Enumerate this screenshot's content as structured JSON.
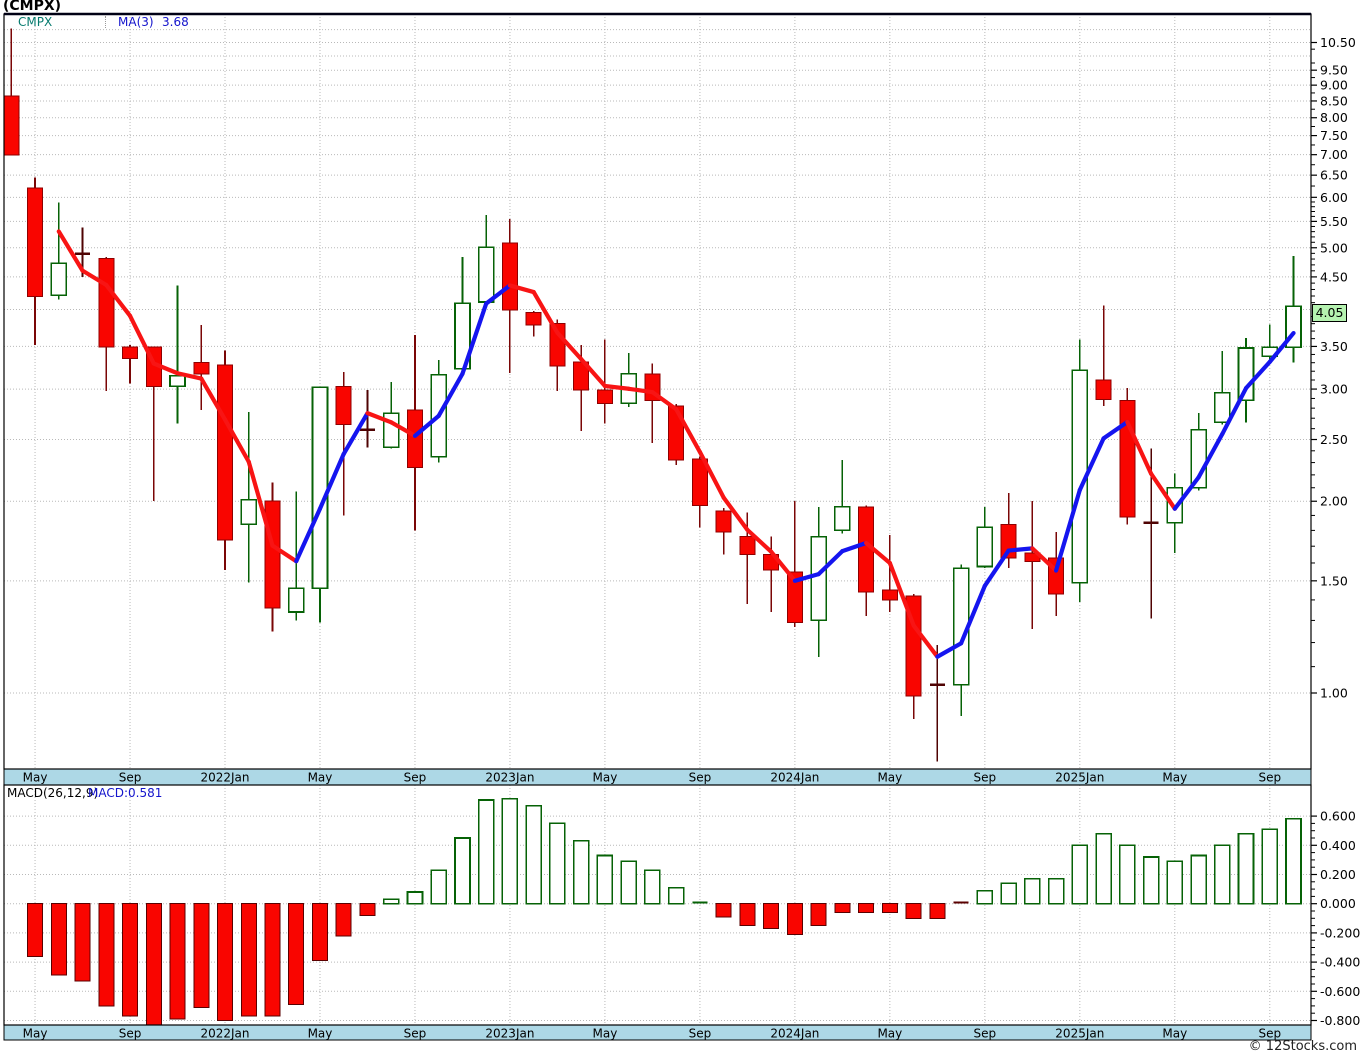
{
  "title": "(CMPX)",
  "legend": {
    "symbol": "CMPX",
    "ma_label": "MA(3)",
    "ma_value": "3.68"
  },
  "macd_legend": {
    "label": "MACD(26,12,9)",
    "value": "MACD:0.581"
  },
  "price_badge": "4.05",
  "watermark": "© 12Stocks.com",
  "colors": {
    "up_outline": "#066206",
    "down_fill": "#f90500",
    "down_outline": "#8f0000",
    "down_wick": "#7a0606",
    "doji": "#4f0303",
    "ma_up": "#1515ef",
    "ma_down": "#f81414",
    "grid": "#b9b9b9",
    "axis_strip": "#add8e6",
    "badge_bg": "#b5f2b0",
    "legend_symbol": "#067a6e",
    "legend_blue": "#1414cc"
  },
  "chart_data": {
    "type": "candlestick",
    "symbol": "CMPX",
    "interval": "monthly",
    "ma_period": 3,
    "ma_current": 3.68,
    "macd_params": [
      26,
      12,
      9
    ],
    "macd_current": 0.581,
    "price_scale": "log",
    "price_axis": {
      "labeled_ticks": [
        "10.50",
        "9.50",
        "9.00",
        "8.50",
        "8.00",
        "7.50",
        "7.00",
        "6.50",
        "6.00",
        "5.50",
        "5.00",
        "4.50",
        "3.50",
        "3.00",
        "2.50",
        "2.00",
        "1.50",
        "1.00"
      ],
      "grid_min": 1.0,
      "grid_max": 11.0,
      "grid_step": 0.5,
      "current_price": 4.05
    },
    "macd_axis": {
      "labeled_ticks": [
        "0.600",
        "0.400",
        "0.200",
        "0.000",
        "-0.200",
        "-0.400",
        "-0.600",
        "-0.800"
      ],
      "grid_step": 0.2
    },
    "x_ticks": [
      {
        "i": 1,
        "label": "May"
      },
      {
        "i": 5,
        "label": "Sep"
      },
      {
        "i": 9,
        "label": "2022Jan"
      },
      {
        "i": 13,
        "label": "May"
      },
      {
        "i": 17,
        "label": "Sep"
      },
      {
        "i": 21,
        "label": "2023Jan"
      },
      {
        "i": 25,
        "label": "May"
      },
      {
        "i": 29,
        "label": "Sep"
      },
      {
        "i": 33,
        "label": "2024Jan"
      },
      {
        "i": 37,
        "label": "May"
      },
      {
        "i": 41,
        "label": "Sep"
      },
      {
        "i": 45,
        "label": "2025Jan"
      },
      {
        "i": 49,
        "label": "May"
      },
      {
        "i": 53,
        "label": "Sep"
      }
    ],
    "candles": [
      [
        "2021-04",
        8.65,
        11.05,
        6.99,
        6.99
      ],
      [
        "2021-05",
        6.21,
        6.45,
        3.52,
        4.19
      ],
      [
        "2021-06",
        4.21,
        5.89,
        4.15,
        4.73
      ],
      [
        "2021-07",
        4.89,
        5.38,
        4.5,
        4.89
      ],
      [
        "2021-08",
        4.81,
        4.84,
        2.98,
        3.49
      ],
      [
        "2021-09",
        3.49,
        3.52,
        3.06,
        3.35
      ],
      [
        "2021-10",
        3.49,
        3.49,
        2.0,
        3.03
      ],
      [
        "2021-11",
        3.03,
        4.36,
        2.65,
        3.15
      ],
      [
        "2021-12",
        3.3,
        3.78,
        2.78,
        3.17
      ],
      [
        "2022-01",
        3.27,
        3.45,
        1.56,
        1.74
      ],
      [
        "2022-02",
        1.84,
        2.76,
        1.49,
        2.01
      ],
      [
        "2022-03",
        2.0,
        2.14,
        1.25,
        1.36
      ],
      [
        "2022-04",
        1.34,
        2.07,
        1.3,
        1.46
      ],
      [
        "2022-05",
        1.46,
        3.02,
        1.29,
        3.02
      ],
      [
        "2022-06",
        3.03,
        3.19,
        1.9,
        2.64
      ],
      [
        "2022-07",
        2.59,
        2.99,
        2.43,
        2.59
      ],
      [
        "2022-08",
        2.43,
        3.08,
        2.42,
        2.75
      ],
      [
        "2022-09",
        2.78,
        3.65,
        1.8,
        2.26
      ],
      [
        "2022-10",
        2.35,
        3.33,
        2.3,
        3.16
      ],
      [
        "2022-11",
        3.23,
        4.84,
        3.2,
        4.09
      ],
      [
        "2022-12",
        4.11,
        5.63,
        4.09,
        5.01
      ],
      [
        "2023-01",
        5.09,
        5.55,
        3.18,
        3.99
      ],
      [
        "2023-02",
        3.96,
        3.98,
        3.63,
        3.78
      ],
      [
        "2023-03",
        3.8,
        3.86,
        2.98,
        3.26
      ],
      [
        "2023-04",
        3.31,
        3.52,
        2.58,
        2.99
      ],
      [
        "2023-05",
        2.99,
        3.59,
        2.65,
        2.85
      ],
      [
        "2023-06",
        2.85,
        3.42,
        2.81,
        3.17
      ],
      [
        "2023-07",
        3.17,
        3.29,
        2.47,
        2.88
      ],
      [
        "2023-08",
        2.82,
        2.84,
        2.28,
        2.32
      ],
      [
        "2023-09",
        2.33,
        2.35,
        1.82,
        1.97
      ],
      [
        "2023-10",
        1.93,
        1.95,
        1.65,
        1.79
      ],
      [
        "2023-11",
        1.76,
        1.92,
        1.38,
        1.65
      ],
      [
        "2023-12",
        1.65,
        1.76,
        1.34,
        1.56
      ],
      [
        "2024-01",
        1.55,
        2.0,
        1.27,
        1.29
      ],
      [
        "2024-02",
        1.3,
        1.96,
        1.14,
        1.76
      ],
      [
        "2024-03",
        1.8,
        2.32,
        1.78,
        1.96
      ],
      [
        "2024-04",
        1.96,
        1.97,
        1.32,
        1.44
      ],
      [
        "2024-05",
        1.45,
        1.77,
        1.34,
        1.4
      ],
      [
        "2024-06",
        1.42,
        1.43,
        0.91,
        0.99
      ],
      [
        "2024-07",
        1.03,
        1.19,
        0.78,
        1.03
      ],
      [
        "2024-08",
        1.03,
        1.59,
        0.92,
        1.57
      ],
      [
        "2024-09",
        1.58,
        1.96,
        1.57,
        1.82
      ],
      [
        "2024-10",
        1.84,
        2.06,
        1.57,
        1.63
      ],
      [
        "2024-11",
        1.66,
        2.0,
        1.26,
        1.61
      ],
      [
        "2024-12",
        1.63,
        1.79,
        1.32,
        1.43
      ],
      [
        "2025-01",
        1.49,
        3.59,
        1.39,
        3.21
      ],
      [
        "2025-02",
        3.1,
        4.06,
        2.82,
        2.89
      ],
      [
        "2025-03",
        2.88,
        3.01,
        1.84,
        1.89
      ],
      [
        "2025-04",
        1.85,
        2.42,
        1.31,
        1.85
      ],
      [
        "2025-05",
        1.85,
        2.21,
        1.66,
        2.1
      ],
      [
        "2025-06",
        2.1,
        2.75,
        2.08,
        2.59
      ],
      [
        "2025-07",
        2.66,
        3.44,
        2.64,
        2.96
      ],
      [
        "2025-08",
        2.88,
        3.61,
        2.66,
        3.48
      ],
      [
        "2025-09",
        3.38,
        3.79,
        3.33,
        3.49
      ],
      [
        "2025-10",
        3.49,
        4.85,
        3.3,
        4.05
      ]
    ],
    "macd_hist": [
      null,
      -0.36,
      -0.49,
      -0.53,
      -0.7,
      -0.77,
      -0.83,
      -0.79,
      -0.71,
      -0.8,
      -0.77,
      -0.77,
      -0.69,
      -0.39,
      -0.22,
      -0.08,
      0.03,
      0.08,
      0.23,
      0.45,
      0.71,
      0.72,
      0.67,
      0.55,
      0.43,
      0.33,
      0.29,
      0.23,
      0.11,
      0.01,
      -0.09,
      -0.15,
      -0.17,
      -0.21,
      -0.15,
      -0.06,
      -0.06,
      -0.06,
      -0.1,
      -0.1,
      -0.01,
      0.09,
      0.14,
      0.17,
      0.17,
      0.4,
      0.48,
      0.4,
      0.32,
      0.29,
      0.33,
      0.4,
      0.48,
      0.51,
      0.581
    ]
  }
}
